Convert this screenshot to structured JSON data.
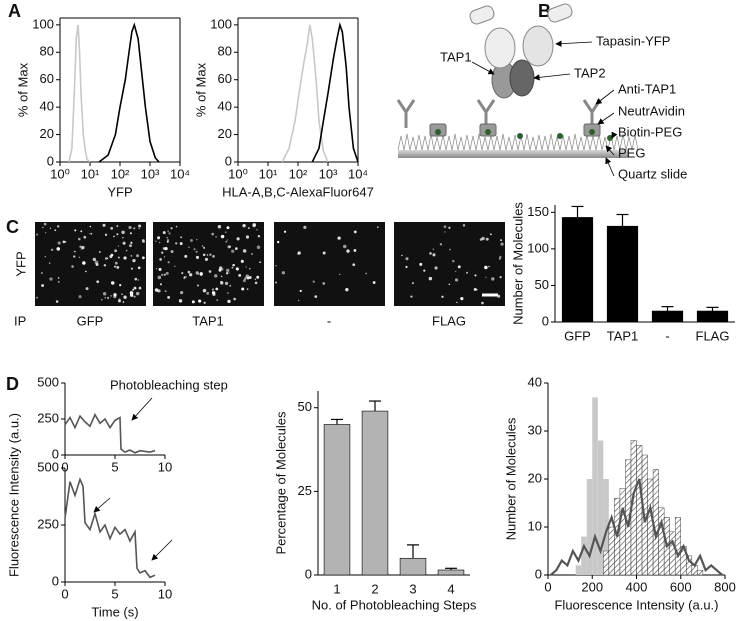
{
  "panel_labels": [
    "A",
    "B",
    "C",
    "D"
  ],
  "diagram": {
    "labels": [
      "Tapasin-YFP",
      "TAP1",
      "TAP2",
      "Anti-TAP1",
      "NeutrAvidin",
      "Biotin-PEG",
      "PEG",
      "Quartz slide"
    ]
  },
  "images": {
    "row_label": "YFP",
    "ip_label": "IP",
    "labels": [
      "GFP",
      "TAP1",
      "-",
      "FLAG"
    ]
  },
  "chart_data": [
    {
      "type": "line",
      "xlabel": "YFP",
      "ylabel": "% of Max",
      "xlog": true,
      "xlim": [
        1,
        10000
      ],
      "ylim": [
        0,
        105
      ],
      "xticks": [
        {
          "value": 1,
          "label": "10⁰"
        },
        {
          "value": 10,
          "label": "10¹"
        },
        {
          "value": 100,
          "label": "10²"
        },
        {
          "value": 1000,
          "label": "10³"
        },
        {
          "value": 10000,
          "label": "10⁴"
        }
      ],
      "yticks": [
        0,
        20,
        40,
        60,
        80,
        100
      ],
      "series": [
        {
          "color": "#c8c8c8",
          "x": [
            2,
            2.5,
            3,
            3.5,
            4,
            4.5,
            5,
            6,
            7,
            8,
            10
          ],
          "values": [
            0,
            10,
            50,
            90,
            100,
            80,
            50,
            20,
            8,
            2,
            0
          ]
        },
        {
          "color": "#000000",
          "x": [
            20,
            40,
            70,
            100,
            150,
            200,
            250,
            300,
            400,
            500,
            700,
            1000,
            1500,
            2000
          ],
          "values": [
            0,
            5,
            20,
            40,
            60,
            80,
            95,
            100,
            90,
            70,
            40,
            15,
            3,
            0
          ]
        }
      ]
    },
    {
      "type": "line",
      "xlabel": "HLA-A,B,C-AlexaFluor647",
      "ylabel": "% of Max",
      "xlog": true,
      "xlim": [
        1,
        10000
      ],
      "ylim": [
        0,
        105
      ],
      "xticks": [
        {
          "value": 1,
          "label": "10⁰"
        },
        {
          "value": 10,
          "label": "10¹"
        },
        {
          "value": 100,
          "label": "10²"
        },
        {
          "value": 1000,
          "label": "10³"
        },
        {
          "value": 10000,
          "label": "10⁴"
        }
      ],
      "yticks": [
        0,
        20,
        40,
        60,
        80,
        100
      ],
      "series": [
        {
          "color": "#c8c8c8",
          "x": [
            30,
            50,
            80,
            100,
            150,
            200,
            250,
            300,
            400,
            500,
            700,
            1000
          ],
          "values": [
            0,
            10,
            30,
            45,
            70,
            85,
            100,
            90,
            60,
            30,
            8,
            0
          ]
        },
        {
          "color": "#000000",
          "x": [
            300,
            500,
            700,
            1000,
            1500,
            2000,
            2500,
            3000,
            4000,
            5000,
            7000,
            10000
          ],
          "values": [
            0,
            10,
            30,
            50,
            75,
            90,
            100,
            95,
            70,
            40,
            10,
            0
          ]
        }
      ]
    },
    {
      "type": "bar",
      "ylabel": "Number of Molecules",
      "categories": [
        "GFP",
        "TAP1",
        "-",
        "FLAG"
      ],
      "values": [
        143,
        131,
        15,
        15
      ],
      "errors": [
        15,
        16,
        6,
        5
      ],
      "color": "#000000",
      "ylim": [
        0,
        160
      ],
      "yticks": [
        0,
        50,
        100,
        150
      ]
    },
    {
      "type": "line",
      "annotation": "Photobleaching step",
      "xlim": [
        0,
        10
      ],
      "ylim": [
        0,
        500
      ],
      "xticks": [
        0,
        5,
        10
      ],
      "yticks": [
        0,
        250,
        500
      ],
      "series": [
        {
          "color": "#555555",
          "x": [
            0,
            0.5,
            1,
            1.5,
            2,
            2.5,
            3,
            3.5,
            4,
            4.5,
            5,
            5.5,
            5.6,
            6,
            6.5,
            7,
            7.5,
            8,
            8.5,
            9
          ],
          "values": [
            210,
            260,
            190,
            270,
            230,
            200,
            280,
            220,
            250,
            190,
            240,
            260,
            40,
            20,
            35,
            15,
            30,
            25,
            20,
            30
          ]
        }
      ]
    },
    {
      "type": "line",
      "xlabel": "Time (s)",
      "ylabel": "Fluorescence Intensity (a.u.)",
      "xlim": [
        0,
        10
      ],
      "ylim": [
        0,
        500
      ],
      "xticks": [
        0,
        5,
        10
      ],
      "yticks": [
        0,
        250,
        500
      ],
      "series": [
        {
          "color": "#555555",
          "x": [
            0,
            0.5,
            1,
            1.5,
            1.8,
            2,
            2.5,
            3,
            3.5,
            4,
            4.5,
            5,
            5.5,
            6,
            6.5,
            7,
            7.2,
            7.5,
            8,
            8.5,
            9
          ],
          "values": [
            280,
            440,
            380,
            450,
            420,
            260,
            230,
            300,
            220,
            250,
            190,
            240,
            210,
            230,
            180,
            220,
            60,
            40,
            50,
            20,
            30
          ]
        }
      ]
    },
    {
      "type": "bar",
      "xlabel": "No. of Photobleaching Steps",
      "ylabel": "Percentage of Molecules",
      "categories": [
        "1",
        "2",
        "3",
        "4"
      ],
      "values": [
        45,
        49,
        5,
        1.5
      ],
      "errors": [
        1.5,
        3,
        4,
        0.5
      ],
      "color": "#b3b3b3",
      "ylim": [
        0,
        55
      ],
      "yticks": [
        0,
        25,
        50
      ]
    },
    {
      "type": "histogram",
      "xlabel": "Fluorescence Intensity (a.u.)",
      "ylabel": "Number of Molecules",
      "xlim": [
        0,
        800
      ],
      "ylim": [
        0,
        40
      ],
      "xticks": [
        0,
        200,
        400,
        600,
        800
      ],
      "yticks": [
        0,
        10,
        20,
        30,
        40
      ],
      "bins": [
        0,
        25,
        50,
        75,
        100,
        125,
        150,
        175,
        200,
        225,
        250,
        275,
        300,
        325,
        350,
        375,
        400,
        425,
        450,
        475,
        500,
        525,
        550,
        575,
        600,
        625,
        650,
        675,
        700,
        725,
        750,
        775,
        800
      ],
      "series": [
        {
          "style": "bar",
          "color": "#c8c8c8",
          "values": [
            0,
            0,
            0,
            0,
            0,
            2,
            8,
            20,
            37,
            28,
            20,
            5,
            1,
            0,
            0,
            0,
            0,
            0,
            0,
            0,
            0,
            0,
            0,
            0,
            0,
            0,
            0,
            0,
            0,
            0,
            0,
            0
          ]
        },
        {
          "style": "hatched",
          "color": "#333333",
          "values": [
            0,
            0,
            0,
            0,
            0,
            0,
            0,
            0,
            0,
            0,
            5,
            10,
            16,
            18,
            24,
            28,
            27,
            25,
            20,
            22,
            14,
            12,
            9,
            12,
            6,
            4,
            2,
            1,
            0,
            0,
            0,
            0
          ]
        },
        {
          "style": "line",
          "color": "#555555",
          "x": [
            12.5,
            37.5,
            62.5,
            87.5,
            112.5,
            137.5,
            162.5,
            187.5,
            212.5,
            237.5,
            262.5,
            287.5,
            312.5,
            337.5,
            362.5,
            387.5,
            412.5,
            437.5,
            462.5,
            487.5,
            512.5,
            537.5,
            562.5,
            587.5,
            612.5,
            637.5,
            662.5,
            687.5,
            712.5,
            737.5,
            762.5,
            787.5
          ],
          "values": [
            0,
            1,
            3,
            2,
            5,
            3,
            6,
            4,
            8,
            5,
            9,
            12,
            8,
            14,
            10,
            17,
            20,
            11,
            14,
            8,
            11,
            6,
            7,
            4,
            6,
            3,
            2,
            4,
            1,
            2,
            1,
            0
          ]
        }
      ]
    }
  ]
}
